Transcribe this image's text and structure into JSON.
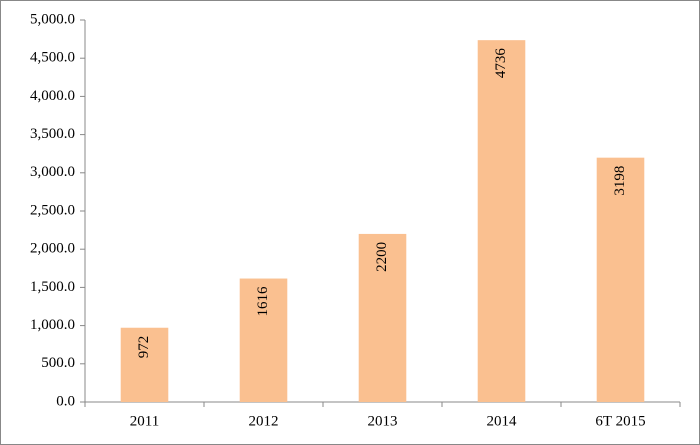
{
  "chart_data": {
    "type": "bar",
    "categories": [
      "2011",
      "2012",
      "2013",
      "2014",
      "6T 2015"
    ],
    "values": [
      972,
      1616,
      2200,
      4736,
      3198
    ],
    "color": "#fac090",
    "ylim": [
      0,
      5000
    ],
    "yticks": [
      {
        "value": 0,
        "label": "0.0"
      },
      {
        "value": 500,
        "label": "500.0"
      },
      {
        "value": 1000,
        "label": "1,000.0"
      },
      {
        "value": 1500,
        "label": "1,500.0"
      },
      {
        "value": 2000,
        "label": "2,000.0"
      },
      {
        "value": 2500,
        "label": "2,500.0"
      },
      {
        "value": 3000,
        "label": "3,000.0"
      },
      {
        "value": 3500,
        "label": "3,500.0"
      },
      {
        "value": 4000,
        "label": "4,000.0"
      },
      {
        "value": 4500,
        "label": "4,500.0"
      },
      {
        "value": 5000,
        "label": "5,000.0"
      }
    ],
    "grid": false
  }
}
